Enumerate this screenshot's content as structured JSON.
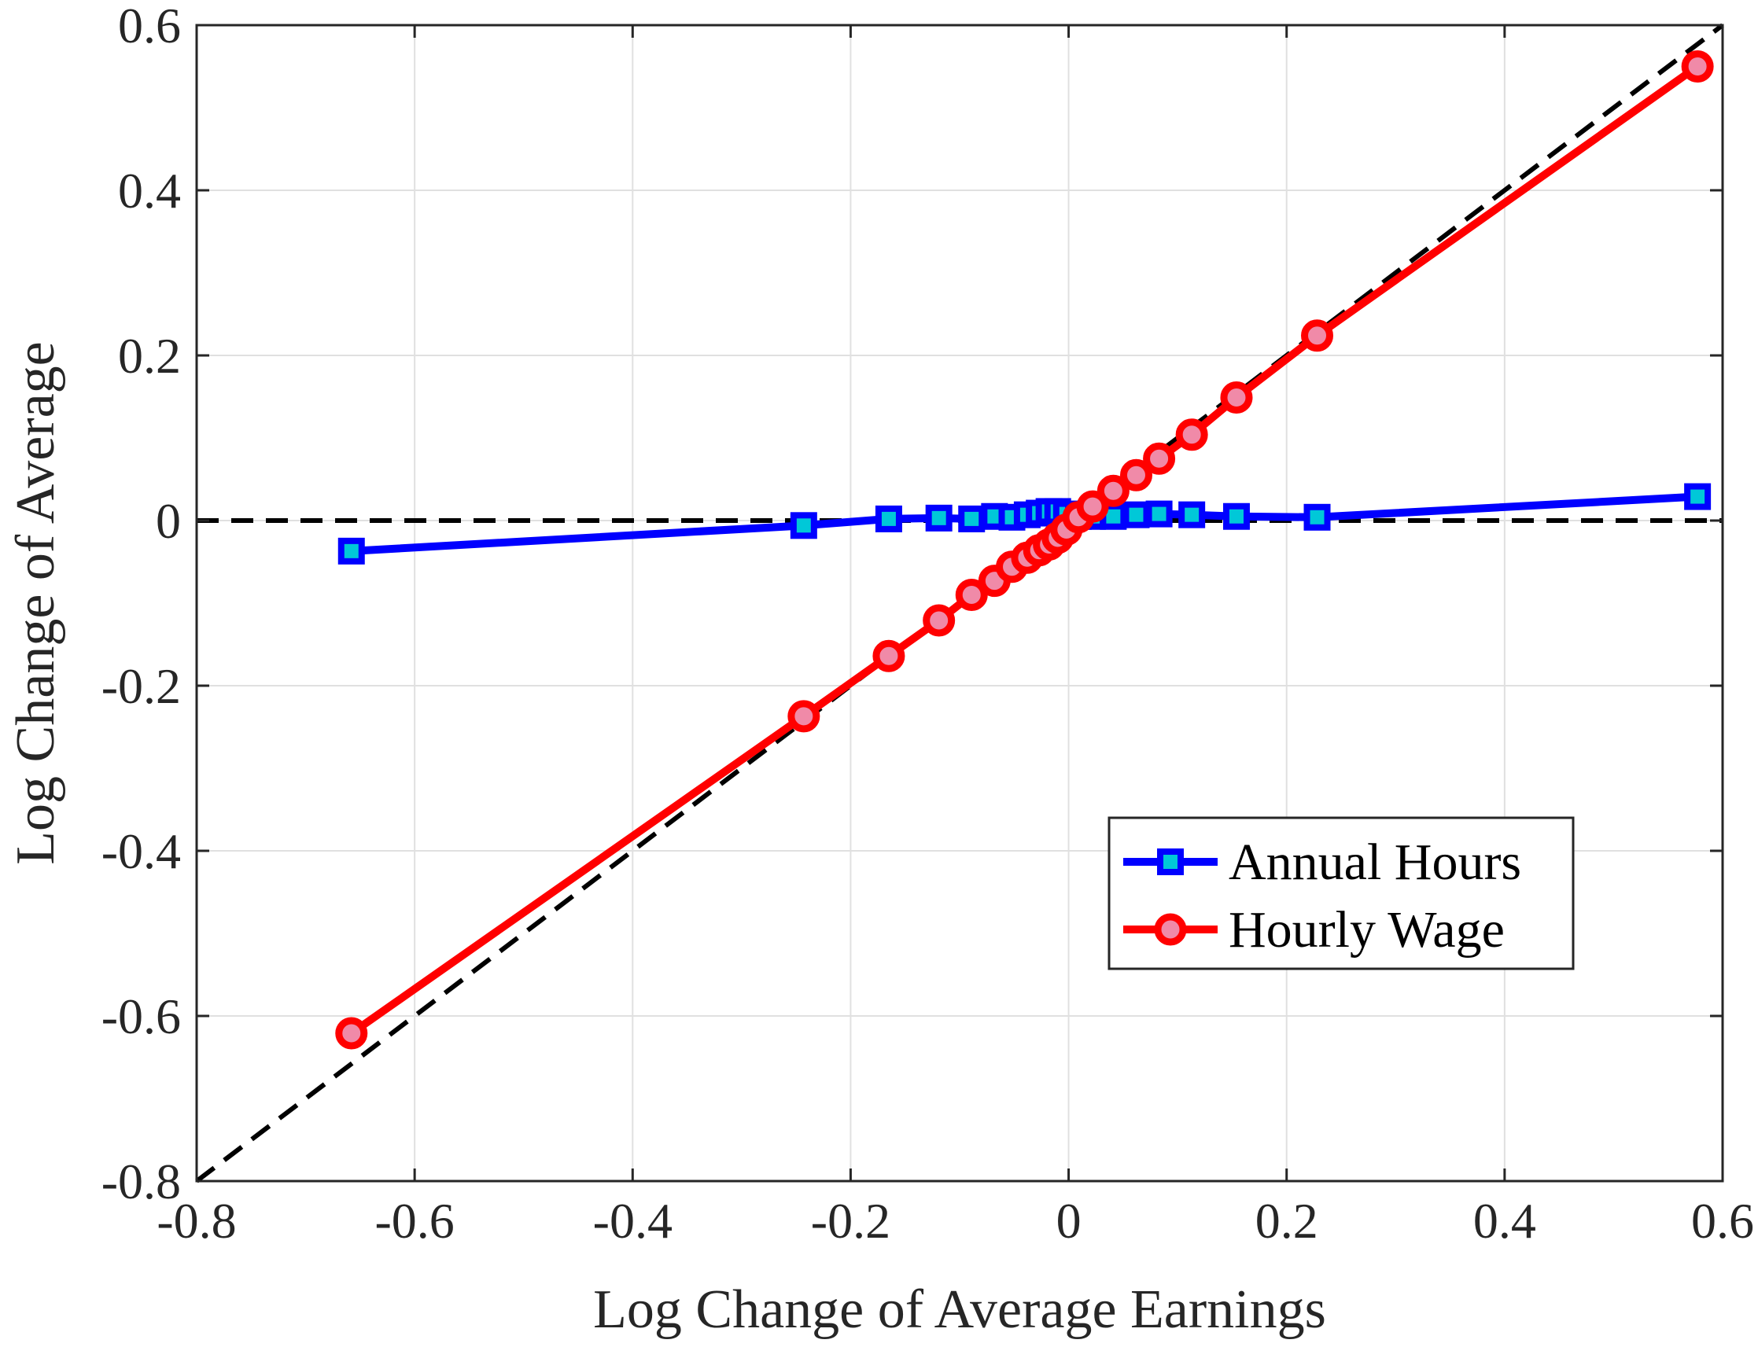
{
  "chart_data": {
    "type": "line",
    "title": "",
    "xlabel": "Log Change of Average Earnings",
    "ylabel": "Log Change of Average",
    "xlim": [
      -0.8,
      0.6
    ],
    "ylim": [
      -0.8,
      0.6
    ],
    "xticks": [
      "-0.8",
      "-0.6",
      "-0.4",
      "-0.2",
      "0",
      "0.2",
      "0.4",
      "0.6"
    ],
    "yticks": [
      "0.6",
      "0.4",
      "0.2",
      "0",
      "-0.2",
      "-0.4",
      "-0.6",
      "-0.8"
    ],
    "grid": true,
    "legend_position": "bottom-right",
    "reference_lines": [
      {
        "type": "identity",
        "style": "dashed",
        "color": "#000000"
      },
      {
        "type": "zero",
        "style": "dashed",
        "color": "#000000"
      }
    ],
    "series": [
      {
        "name": "Annual Hours",
        "color": "#0000ff",
        "marker": "square",
        "marker_fill": "#00c8d8",
        "x": [
          -0.658,
          -0.243,
          -0.165,
          -0.119,
          -0.089,
          -0.068,
          -0.052,
          -0.038,
          -0.027,
          -0.018,
          -0.01,
          -0.002,
          0.009,
          0.022,
          0.041,
          0.062,
          0.083,
          0.113,
          0.154,
          0.228,
          0.577
        ],
        "y": [
          -0.037,
          -0.006,
          0.002,
          0.003,
          0.002,
          0.005,
          0.004,
          0.007,
          0.009,
          0.011,
          0.011,
          0.008,
          0.005,
          0.005,
          0.005,
          0.007,
          0.008,
          0.007,
          0.005,
          0.004,
          0.029
        ]
      },
      {
        "name": "Hourly Wage",
        "color": "#ff0000",
        "marker": "circle",
        "marker_fill": "#f08aa8",
        "x": [
          -0.658,
          -0.243,
          -0.165,
          -0.119,
          -0.089,
          -0.068,
          -0.052,
          -0.038,
          -0.027,
          -0.018,
          -0.01,
          -0.002,
          0.009,
          0.022,
          0.041,
          0.062,
          0.083,
          0.113,
          0.154,
          0.228,
          0.577
        ],
        "y": [
          -0.621,
          -0.237,
          -0.164,
          -0.121,
          -0.09,
          -0.073,
          -0.056,
          -0.045,
          -0.036,
          -0.029,
          -0.021,
          -0.011,
          0.004,
          0.017,
          0.036,
          0.055,
          0.075,
          0.104,
          0.149,
          0.224,
          0.55
        ]
      }
    ]
  }
}
